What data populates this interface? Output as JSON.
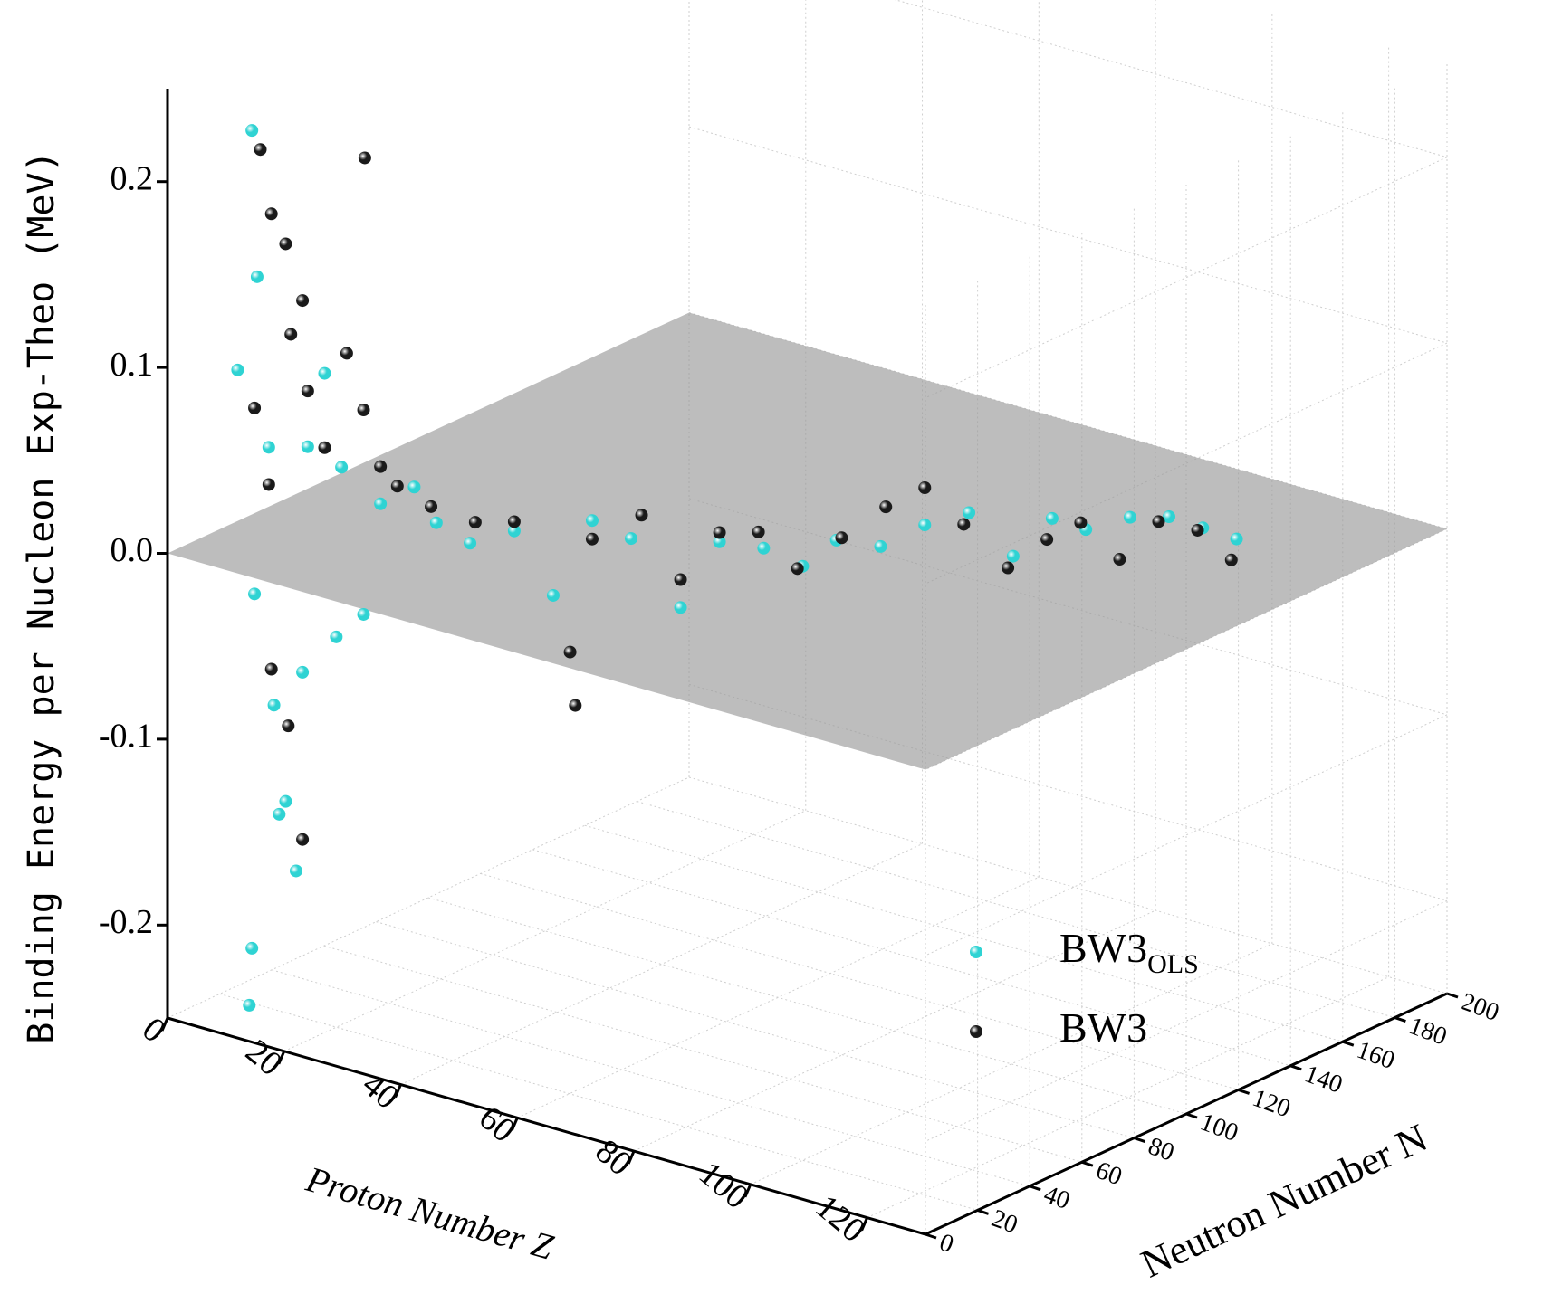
{
  "chart_data": {
    "type": "scatter3d",
    "x_label": "Proton Number Z",
    "y_label": "Neutron Number N",
    "z_label": "Binding Energy per Nucleon Exp-Theo (MeV)",
    "xlim": [
      0,
      130
    ],
    "xticks": [
      0,
      20,
      40,
      60,
      80,
      100,
      120
    ],
    "ylim": [
      0,
      200
    ],
    "yticks": [
      0,
      20,
      40,
      60,
      80,
      100,
      120,
      140,
      160,
      180,
      200
    ],
    "zlim": [
      -0.25,
      0.25
    ],
    "zticks": [
      -0.2,
      -0.1,
      {
        "value": 0,
        "label": "0.0"
      },
      0.1,
      0.2
    ],
    "grid": true,
    "legend": "lower right",
    "series": [
      {
        "name": "BW3",
        "name_subscript": "OLS",
        "color": "#2fd3d3",
        "x": [
          10,
          10,
          8,
          12,
          10,
          12,
          14,
          10,
          10,
          16,
          18,
          20,
          22,
          24,
          28,
          30,
          34,
          38,
          42,
          46,
          50,
          54,
          58,
          62,
          66,
          70,
          74,
          78,
          82,
          86,
          90,
          94,
          98,
          102,
          106,
          110,
          16,
          20,
          12,
          14
        ],
        "y": [
          10,
          12,
          9,
          12,
          11,
          14,
          14,
          10,
          9,
          18,
          20,
          22,
          26,
          28,
          32,
          36,
          40,
          48,
          54,
          60,
          66,
          76,
          82,
          90,
          96,
          100,
          108,
          116,
          124,
          132,
          138,
          142,
          150,
          156,
          160,
          164,
          16,
          20,
          16,
          18
        ],
        "values": [
          0.23,
          0.15,
          0.1,
          0.06,
          -0.02,
          -0.08,
          -0.13,
          -0.21,
          -0.24,
          0.06,
          0.1,
          0.05,
          -0.03,
          0.03,
          0.04,
          0.02,
          0.01,
          0.015,
          -0.02,
          0.02,
          0.01,
          -0.03,
          0.005,
          0.0,
          -0.01,
          0.005,
          0.0,
          0.01,
          0.015,
          -0.01,
          0.01,
          0.005,
          0.01,
          0.01,
          0.005,
          0.0,
          -0.06,
          -0.04,
          -0.14,
          -0.17
        ]
      },
      {
        "name": "BW3",
        "color": "#1a1a1a",
        "x": [
          11,
          12,
          14,
          16,
          24,
          10,
          12,
          14,
          16,
          18,
          20,
          22,
          24,
          12,
          14,
          16,
          26,
          30,
          34,
          38,
          44,
          46,
          50,
          54,
          58,
          62,
          66,
          70,
          74,
          78,
          82,
          86,
          90,
          94,
          98,
          102,
          106,
          110,
          44
        ],
        "y": [
          11,
          13,
          14,
          16,
          22,
          11,
          12,
          16,
          18,
          20,
          24,
          26,
          28,
          13,
          15,
          16,
          30,
          34,
          42,
          48,
          56,
          60,
          70,
          76,
          82,
          88,
          94,
          102,
          110,
          116,
          122,
          130,
          136,
          140,
          146,
          152,
          158,
          162,
          58
        ],
        "values": [
          0.22,
          0.185,
          0.17,
          0.14,
          0.22,
          0.08,
          0.04,
          0.12,
          0.09,
          0.06,
          0.11,
          0.08,
          0.05,
          -0.06,
          -0.09,
          -0.15,
          0.04,
          0.03,
          0.02,
          0.02,
          -0.05,
          0.01,
          0.02,
          -0.015,
          0.01,
          0.01,
          -0.01,
          0.005,
          0.02,
          0.03,
          0.01,
          -0.015,
          0.0,
          0.01,
          -0.01,
          0.01,
          0.005,
          -0.01,
          -0.08
        ]
      }
    ]
  }
}
